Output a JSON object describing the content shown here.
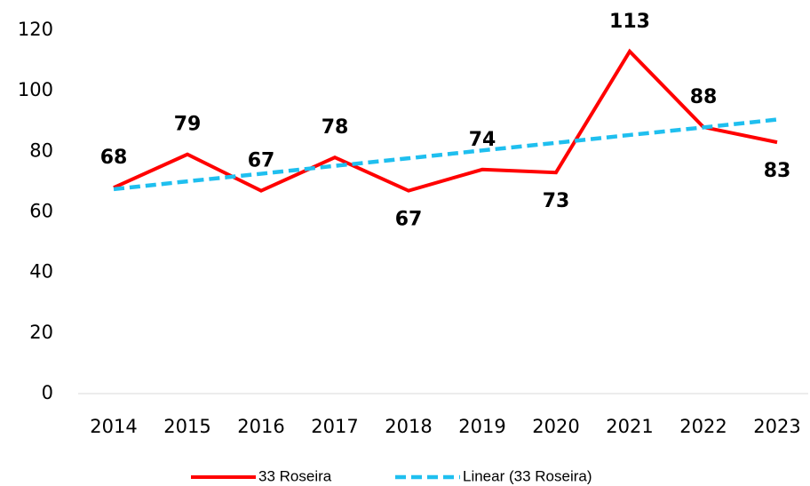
{
  "chart_data": {
    "type": "line",
    "categories": [
      "2014",
      "2015",
      "2016",
      "2017",
      "2018",
      "2019",
      "2020",
      "2021",
      "2022",
      "2023"
    ],
    "series": [
      {
        "name": "33 Roseira",
        "color": "#ff0000",
        "style": "solid",
        "data_labels": true,
        "values": [
          68,
          79,
          67,
          78,
          67,
          74,
          73,
          113,
          88,
          83
        ]
      },
      {
        "name": "Linear (33 Roseira)",
        "color": "#1fbfef",
        "style": "dashed",
        "data_labels": false,
        "values": [
          67.5,
          70.1,
          72.6,
          75.2,
          77.7,
          80.3,
          82.8,
          85.4,
          87.9,
          90.5
        ]
      }
    ],
    "ylim": [
      0,
      120
    ],
    "yticks": [
      0,
      20,
      40,
      60,
      80,
      100,
      120
    ],
    "grid": false,
    "legend": "bottom"
  }
}
